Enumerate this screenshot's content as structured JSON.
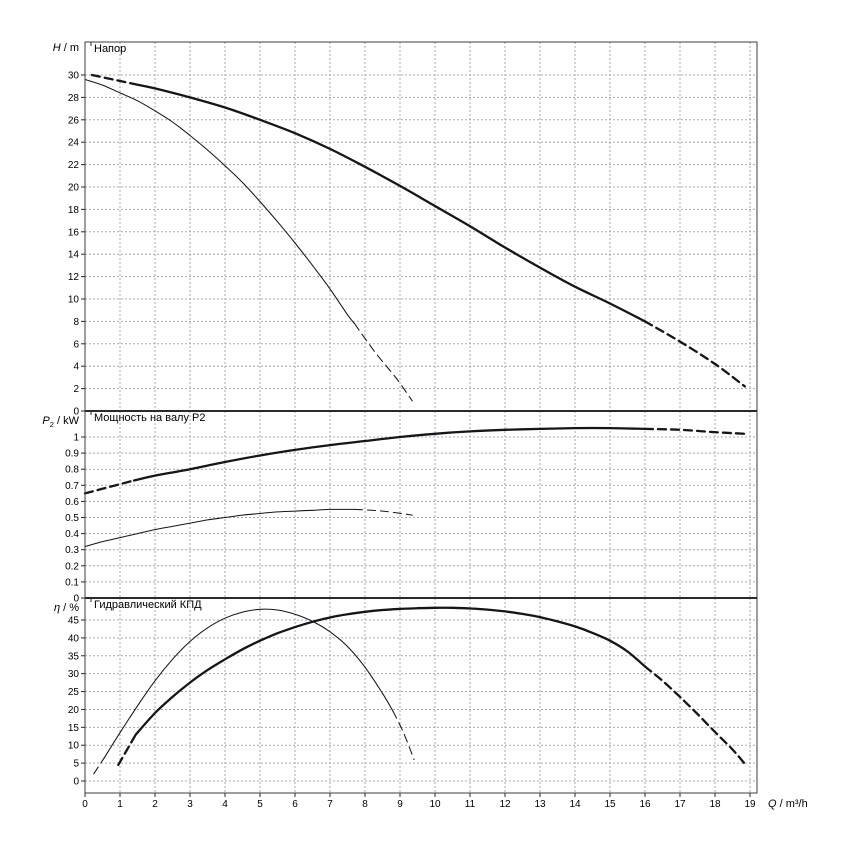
{
  "page": {
    "background": "#ffffff",
    "curve_color": "#14161a",
    "grid_color": "#aaaaaa"
  },
  "x_axis": {
    "title": {
      "symbol": "Q",
      "sub": "",
      "unit": "m³/h"
    },
    "ticks": [
      0,
      1,
      2,
      3,
      4,
      5,
      6,
      7,
      8,
      9,
      10,
      11,
      12,
      13,
      14,
      15,
      16,
      17,
      18,
      19
    ],
    "xlim": [
      0,
      19.2
    ]
  },
  "chart_data": [
    {
      "type": "line",
      "id": "head",
      "title": "Напор",
      "ylabel": {
        "symbol": "H",
        "sub": "",
        "unit": "m"
      },
      "xlabel": "Q / m³/h",
      "ylim": [
        0,
        32.9
      ],
      "yticks": [
        0,
        2,
        4,
        6,
        8,
        10,
        12,
        14,
        16,
        18,
        20,
        22,
        24,
        26,
        28,
        30
      ],
      "grid": true,
      "series": [
        {
          "name": "head-curve-max-speed",
          "weight": "thick",
          "segments": [
            {
              "dash": true,
              "points": [
                [
                  0.2,
                  30.0
                ],
                [
                  0.8,
                  29.6
                ],
                [
                  1.4,
                  29.2
                ]
              ]
            },
            {
              "dash": false,
              "points": [
                [
                  1.4,
                  29.2
                ],
                [
                  2,
                  28.8
                ],
                [
                  3,
                  28.0
                ],
                [
                  4,
                  27.1
                ],
                [
                  5,
                  26.0
                ],
                [
                  6,
                  24.8
                ],
                [
                  7,
                  23.4
                ],
                [
                  8,
                  21.8
                ],
                [
                  9,
                  20.1
                ],
                [
                  10,
                  18.3
                ],
                [
                  11,
                  16.5
                ],
                [
                  12,
                  14.6
                ],
                [
                  13,
                  12.8
                ],
                [
                  14,
                  11.1
                ],
                [
                  15,
                  9.6
                ],
                [
                  16,
                  8.0
                ]
              ]
            },
            {
              "dash": true,
              "points": [
                [
                  16,
                  8.0
                ],
                [
                  17,
                  6.2
                ],
                [
                  18,
                  4.2
                ],
                [
                  18.85,
                  2.2
                ]
              ]
            }
          ]
        },
        {
          "name": "head-curve-min-speed",
          "weight": "thin",
          "segments": [
            {
              "dash": false,
              "points": [
                [
                  0,
                  29.6
                ],
                [
                  0.5,
                  29.1
                ],
                [
                  1,
                  28.4
                ],
                [
                  1.5,
                  27.7
                ],
                [
                  2,
                  26.8
                ],
                [
                  2.5,
                  25.8
                ],
                [
                  3,
                  24.6
                ],
                [
                  3.5,
                  23.3
                ],
                [
                  4,
                  21.9
                ],
                [
                  4.5,
                  20.4
                ],
                [
                  5,
                  18.7
                ],
                [
                  5.5,
                  16.9
                ],
                [
                  6,
                  15.0
                ],
                [
                  6.5,
                  13.0
                ],
                [
                  7,
                  10.9
                ],
                [
                  7.5,
                  8.6
                ],
                [
                  7.7,
                  7.8
                ]
              ]
            },
            {
              "dash": true,
              "points": [
                [
                  7.7,
                  7.8
                ],
                [
                  8.3,
                  5.2
                ],
                [
                  8.9,
                  2.9
                ],
                [
                  9.35,
                  0.9
                ]
              ]
            }
          ]
        }
      ]
    },
    {
      "type": "line",
      "id": "power",
      "title": "Мощность на валу P2",
      "ylabel": {
        "symbol": "P",
        "sub": "2",
        "unit": "kW"
      },
      "xlabel": "Q / m³/h",
      "ylim": [
        0,
        1.16
      ],
      "yticks": [
        0,
        0.1,
        0.2,
        0.3,
        0.4,
        0.5,
        0.6,
        0.7,
        0.8,
        0.9,
        1
      ],
      "grid": true,
      "series": [
        {
          "name": "power-curve-max-speed",
          "weight": "thick",
          "segments": [
            {
              "dash": true,
              "points": [
                [
                  0,
                  0.65
                ],
                [
                  0.7,
                  0.69
                ],
                [
                  1.4,
                  0.73
                ]
              ]
            },
            {
              "dash": false,
              "points": [
                [
                  1.4,
                  0.73
                ],
                [
                  2,
                  0.76
                ],
                [
                  3,
                  0.8
                ],
                [
                  4,
                  0.845
                ],
                [
                  5,
                  0.885
                ],
                [
                  6,
                  0.92
                ],
                [
                  7,
                  0.95
                ],
                [
                  8,
                  0.975
                ],
                [
                  9,
                  1.0
                ],
                [
                  10,
                  1.02
                ],
                [
                  11,
                  1.035
                ],
                [
                  12,
                  1.045
                ],
                [
                  13,
                  1.05
                ],
                [
                  14,
                  1.055
                ],
                [
                  15,
                  1.055
                ],
                [
                  16,
                  1.05
                ]
              ]
            },
            {
              "dash": true,
              "points": [
                [
                  16,
                  1.05
                ],
                [
                  17,
                  1.045
                ],
                [
                  18,
                  1.03
                ],
                [
                  18.85,
                  1.02
                ]
              ]
            }
          ]
        },
        {
          "name": "power-curve-min-speed",
          "weight": "thin",
          "segments": [
            {
              "dash": false,
              "points": [
                [
                  0,
                  0.32
                ],
                [
                  0.5,
                  0.35
                ],
                [
                  1,
                  0.375
                ],
                [
                  1.5,
                  0.4
                ],
                [
                  2,
                  0.425
                ],
                [
                  2.5,
                  0.445
                ],
                [
                  3,
                  0.465
                ],
                [
                  3.5,
                  0.485
                ],
                [
                  4,
                  0.5
                ],
                [
                  4.5,
                  0.515
                ],
                [
                  5,
                  0.525
                ],
                [
                  5.5,
                  0.535
                ],
                [
                  6,
                  0.54
                ],
                [
                  6.5,
                  0.545
                ],
                [
                  7,
                  0.55
                ],
                [
                  7.7,
                  0.55
                ]
              ]
            },
            {
              "dash": true,
              "points": [
                [
                  7.7,
                  0.55
                ],
                [
                  8.5,
                  0.54
                ],
                [
                  9.35,
                  0.515
                ]
              ]
            }
          ]
        }
      ]
    },
    {
      "type": "line",
      "id": "efficiency",
      "title": "Гидравлический КПД",
      "ylabel": {
        "symbol": "η",
        "sub": "",
        "unit": "%"
      },
      "xlabel": "Q / m³/h",
      "ylim": [
        0,
        51
      ],
      "yticks": [
        0,
        5,
        10,
        15,
        20,
        25,
        30,
        35,
        40,
        45
      ],
      "grid": true,
      "series": [
        {
          "name": "efficiency-curve-max-speed",
          "weight": "thick",
          "segments": [
            {
              "dash": true,
              "points": [
                [
                  0.95,
                  4.5
                ],
                [
                  1.45,
                  13.0
                ]
              ]
            },
            {
              "dash": false,
              "points": [
                [
                  1.45,
                  13.0
                ],
                [
                  2,
                  19.0
                ],
                [
                  2.5,
                  23.5
                ],
                [
                  3,
                  27.5
                ],
                [
                  3.5,
                  31.0
                ],
                [
                  4,
                  34.0
                ],
                [
                  4.5,
                  36.8
                ],
                [
                  5,
                  39.2
                ],
                [
                  5.5,
                  41.3
                ],
                [
                  6,
                  43.0
                ],
                [
                  6.5,
                  44.5
                ],
                [
                  7,
                  45.7
                ],
                [
                  7.5,
                  46.6
                ],
                [
                  8,
                  47.3
                ],
                [
                  8.5,
                  47.8
                ],
                [
                  9,
                  48.1
                ],
                [
                  9.5,
                  48.3
                ],
                [
                  10,
                  48.4
                ],
                [
                  10.5,
                  48.4
                ],
                [
                  11,
                  48.2
                ],
                [
                  11.5,
                  47.9
                ],
                [
                  12,
                  47.4
                ],
                [
                  12.5,
                  46.7
                ],
                [
                  13,
                  45.8
                ],
                [
                  13.5,
                  44.6
                ],
                [
                  14,
                  43.2
                ],
                [
                  14.5,
                  41.4
                ],
                [
                  15,
                  39.2
                ],
                [
                  15.5,
                  36.2
                ],
                [
                  16,
                  32.0
                ]
              ]
            },
            {
              "dash": true,
              "points": [
                [
                  16,
                  32.0
                ],
                [
                  16.5,
                  28.0
                ],
                [
                  17,
                  23.5
                ],
                [
                  17.5,
                  18.7
                ],
                [
                  18,
                  13.7
                ],
                [
                  18.5,
                  8.8
                ],
                [
                  18.85,
                  4.8
                ]
              ]
            }
          ]
        },
        {
          "name": "efficiency-curve-min-speed",
          "weight": "thin",
          "segments": [
            {
              "dash": true,
              "points": [
                [
                  0.25,
                  2.0
                ],
                [
                  0.55,
                  6.5
                ]
              ]
            },
            {
              "dash": false,
              "points": [
                [
                  0.55,
                  6.5
                ],
                [
                  1,
                  13.5
                ],
                [
                  1.5,
                  21.0
                ],
                [
                  2,
                  28.0
                ],
                [
                  2.5,
                  34.0
                ],
                [
                  3,
                  39.0
                ],
                [
                  3.5,
                  42.8
                ],
                [
                  4,
                  45.5
                ],
                [
                  4.5,
                  47.2
                ],
                [
                  5,
                  48.0
                ],
                [
                  5.5,
                  47.8
                ],
                [
                  6,
                  46.6
                ],
                [
                  6.5,
                  44.6
                ],
                [
                  7,
                  41.7
                ],
                [
                  7.5,
                  37.6
                ],
                [
                  8,
                  31.8
                ],
                [
                  8.5,
                  24.5
                ],
                [
                  8.8,
                  19.5
                ]
              ]
            },
            {
              "dash": true,
              "points": [
                [
                  8.8,
                  19.5
                ],
                [
                  9.1,
                  13.5
                ],
                [
                  9.4,
                  6.0
                ]
              ]
            }
          ]
        }
      ]
    }
  ]
}
